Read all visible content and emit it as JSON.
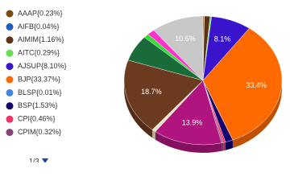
{
  "chart_data": {
    "type": "pie",
    "categories": [
      "AAAP{0.23%}",
      "AIFB{0.04%}",
      "AIMIM{1.16%}",
      "AITC{0.29%}",
      "AJSUP{8.10%}",
      "BJP{33.37%}",
      "BLSP{0.01%}",
      "BSP{1.53%}",
      "CPI{0.46%}",
      "CPIM{0.32%}",
      null,
      null,
      null,
      null,
      null,
      null,
      null
    ],
    "values": [
      0.23,
      0.04,
      1.16,
      0.29,
      8.1,
      33.37,
      0.01,
      1.53,
      0.46,
      0.32,
      13.9,
      0.8,
      18.7,
      6.5,
      1.0,
      1.5,
      10.6
    ],
    "value_labels": [
      null,
      null,
      null,
      null,
      "8.1%",
      "33.4%",
      null,
      null,
      null,
      null,
      "13.9%",
      null,
      "18.7%",
      null,
      null,
      null,
      "10.6%"
    ],
    "colors": [
      "#7a4a12",
      "#1f5fbf",
      "#5c3317",
      "#66dd55",
      "#3a14cc",
      "#ff6a00",
      "#4488dd",
      "#14006e",
      "#ee3366",
      "#884477",
      "#b0157f",
      "#ece4c4",
      "#6b3a1f",
      "#1a6b3a",
      "#33dd33",
      "#ff33cc",
      "#c8c8c8"
    ],
    "legend_page": "1/3"
  }
}
